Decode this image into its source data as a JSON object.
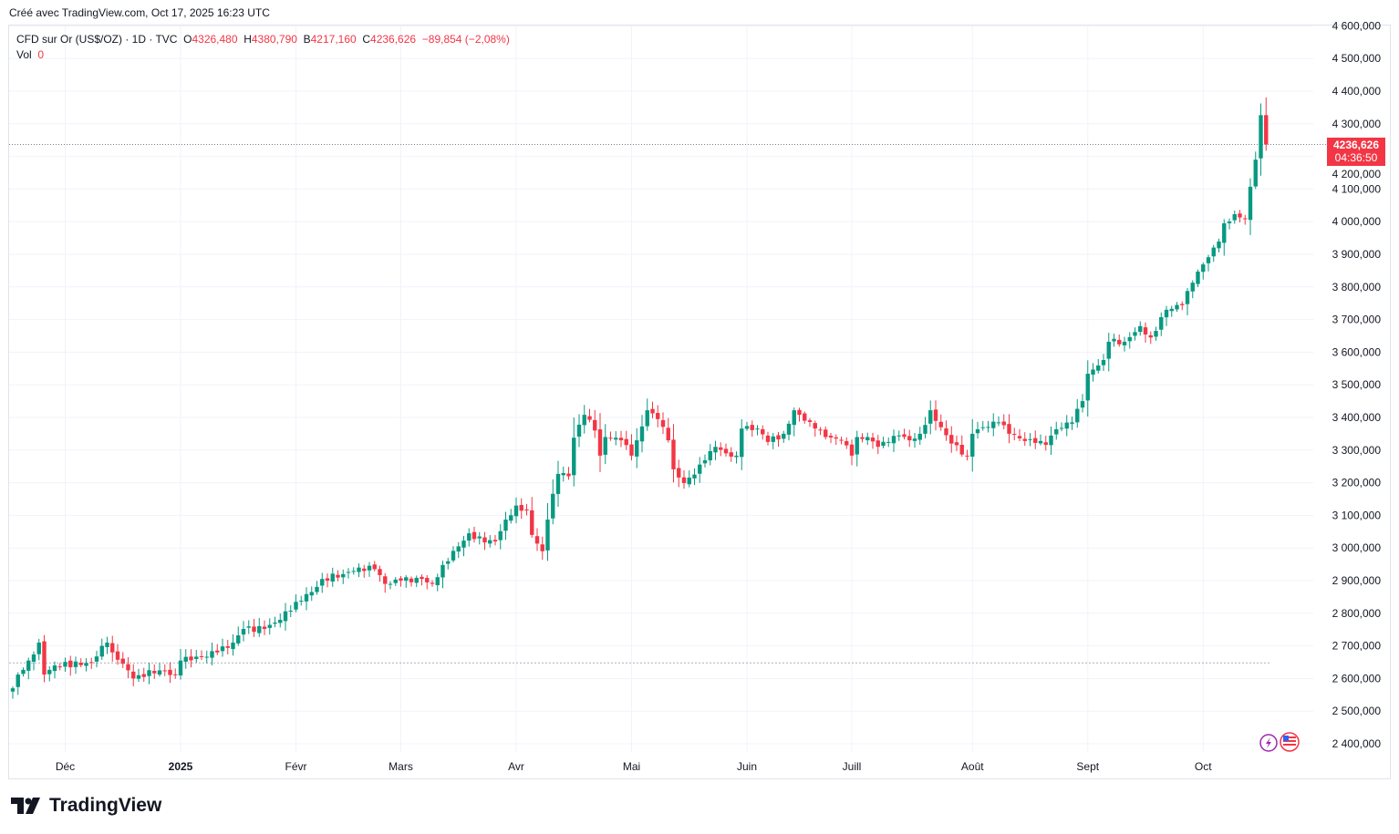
{
  "credit": "Créé avec TradingView.com, Oct 17, 2025 16:23 UTC",
  "legend": {
    "symbol": "CFD sur Or (US$/OZ) · 1D · TVC",
    "o_label": "O",
    "o": "4326,480",
    "h_label": "H",
    "h": "4380,790",
    "l_label": "B",
    "l": "4217,160",
    "c_label": "C",
    "c": "4236,626",
    "change": "−89,854 (−2,08%)",
    "vol_label": "Vol",
    "vol": "0"
  },
  "price_badge": {
    "price": "4236,626",
    "countdown": "04:36:50"
  },
  "logo": "TradingView",
  "icons": [
    "lightning-icon",
    "us-flag-icon"
  ],
  "colors": {
    "up": "#089981",
    "down": "#f23645",
    "grid": "#f0f3fa",
    "badge": "#f23645"
  },
  "chart_data": {
    "type": "candlestick",
    "title": "CFD sur Or (US$/OZ) · 1D · TVC",
    "ylim": [
      2350,
      4600
    ],
    "y_ticks": [
      2400,
      2500,
      2600,
      2700,
      2800,
      2900,
      3000,
      3100,
      3200,
      3300,
      3400,
      3500,
      3600,
      3700,
      3800,
      3900,
      4000,
      4100,
      4200,
      4300,
      4400,
      4500,
      4600
    ],
    "y_tick_labels": [
      "2 400,000",
      "2 500,000",
      "2 600,000",
      "2 700,000",
      "2 800,000",
      "2 900,000",
      "3 000,000",
      "3 100,000",
      "3 200,000",
      "3 300,000",
      "3 400,000",
      "3 500,000",
      "3 600,000",
      "3 700,000",
      "3 800,000",
      "3 900,000",
      "4 000,000",
      "4 100,000",
      "4 200,000",
      "4 300,000",
      "4 400,000",
      "4 500,000",
      "4 600,000"
    ],
    "x_ticks": [
      {
        "label": "Déc",
        "index": 10
      },
      {
        "label": "2025",
        "index": 32,
        "bold": true
      },
      {
        "label": "Févr",
        "index": 54
      },
      {
        "label": "Mars",
        "index": 74
      },
      {
        "label": "Avr",
        "index": 96
      },
      {
        "label": "Mai",
        "index": 118
      },
      {
        "label": "Juin",
        "index": 140
      },
      {
        "label": "Juill",
        "index": 160
      },
      {
        "label": "Août",
        "index": 183
      },
      {
        "label": "Sept",
        "index": 205
      },
      {
        "label": "Oct",
        "index": 227
      }
    ],
    "n_candles": 240,
    "close_points": [
      [
        0,
        2570
      ],
      [
        1,
        2612
      ],
      [
        3,
        2655
      ],
      [
        5,
        2710
      ],
      [
        6,
        2612
      ],
      [
        8,
        2640
      ],
      [
        15,
        2648
      ],
      [
        17,
        2700
      ],
      [
        18,
        2710
      ],
      [
        19,
        2680
      ],
      [
        21,
        2645
      ],
      [
        23,
        2600
      ],
      [
        24,
        2610
      ],
      [
        28,
        2625
      ],
      [
        31,
        2612
      ],
      [
        32,
        2655
      ],
      [
        36,
        2668
      ],
      [
        39,
        2680
      ],
      [
        42,
        2710
      ],
      [
        44,
        2752
      ],
      [
        48,
        2752
      ],
      [
        51,
        2780
      ],
      [
        54,
        2835
      ],
      [
        57,
        2865
      ],
      [
        59,
        2905
      ],
      [
        63,
        2920
      ],
      [
        66,
        2940
      ],
      [
        69,
        2935
      ],
      [
        71,
        2890
      ],
      [
        74,
        2900
      ],
      [
        78,
        2905
      ],
      [
        80,
        2890
      ],
      [
        82,
        2948
      ],
      [
        85,
        3005
      ],
      [
        87,
        3045
      ],
      [
        90,
        3017
      ],
      [
        92,
        3020
      ],
      [
        94,
        3087
      ],
      [
        96,
        3130
      ],
      [
        98,
        3115
      ],
      [
        99,
        3040
      ],
      [
        101,
        2990
      ],
      [
        102,
        3087
      ],
      [
        104,
        3227
      ],
      [
        106,
        3220
      ],
      [
        107,
        3338
      ],
      [
        109,
        3408
      ],
      [
        111,
        3360
      ],
      [
        112,
        3283
      ],
      [
        113,
        3340
      ],
      [
        116,
        3330
      ],
      [
        118,
        3283
      ],
      [
        119,
        3330
      ],
      [
        121,
        3422
      ],
      [
        123,
        3395
      ],
      [
        125,
        3330
      ],
      [
        126,
        3241
      ],
      [
        128,
        3199
      ],
      [
        130,
        3225
      ],
      [
        132,
        3269
      ],
      [
        134,
        3310
      ],
      [
        136,
        3290
      ],
      [
        138,
        3283
      ],
      [
        139,
        3366
      ],
      [
        142,
        3366
      ],
      [
        144,
        3325
      ],
      [
        147,
        3350
      ],
      [
        149,
        3422
      ],
      [
        151,
        3390
      ],
      [
        153,
        3366
      ],
      [
        155,
        3340
      ],
      [
        158,
        3330
      ],
      [
        160,
        3283
      ],
      [
        161,
        3340
      ],
      [
        163,
        3340
      ],
      [
        165,
        3310
      ],
      [
        167,
        3325
      ],
      [
        169,
        3345
      ],
      [
        171,
        3330
      ],
      [
        173,
        3350
      ],
      [
        175,
        3422
      ],
      [
        177,
        3370
      ],
      [
        179,
        3320
      ],
      [
        182,
        3283
      ],
      [
        183,
        3350
      ],
      [
        185,
        3370
      ],
      [
        188,
        3385
      ],
      [
        190,
        3350
      ],
      [
        192,
        3336
      ],
      [
        195,
        3322
      ],
      [
        197,
        3316
      ],
      [
        199,
        3364
      ],
      [
        202,
        3385
      ],
      [
        204,
        3450
      ],
      [
        205,
        3534
      ],
      [
        208,
        3576
      ],
      [
        209,
        3632
      ],
      [
        212,
        3632
      ],
      [
        215,
        3680
      ],
      [
        217,
        3645
      ],
      [
        220,
        3730
      ],
      [
        223,
        3744
      ],
      [
        225,
        3813
      ],
      [
        227,
        3869
      ],
      [
        230,
        3939
      ],
      [
        231,
        3995
      ],
      [
        233,
        4023
      ],
      [
        235,
        4009
      ],
      [
        236,
        4107
      ],
      [
        237,
        4190
      ],
      [
        238,
        4326.48
      ],
      [
        239,
        4236.626
      ]
    ],
    "last_candle": {
      "open": 4326.48,
      "high": 4380.79,
      "low": 4217.16,
      "close": 4236.626
    },
    "reference_line": 2648
  }
}
